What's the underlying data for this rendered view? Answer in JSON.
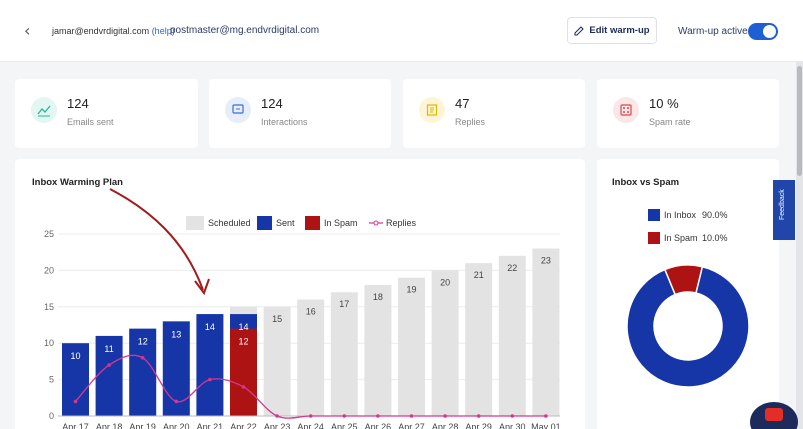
{
  "header": {
    "user_email": "jamar@endvrdigital.com",
    "help_label": "(help)",
    "mailbox": "postmaster@mg.endvrdigital.com",
    "edit_button": "Edit warm-up",
    "warmup_status": "Warm-up active",
    "warmup_on": true
  },
  "stats": [
    {
      "value": "124",
      "label": "Emails sent",
      "icon": "chart-line-icon",
      "color": "#26b89a",
      "bg": "#e3f6f1"
    },
    {
      "value": "124",
      "label": "Interactions",
      "icon": "chat-icon",
      "color": "#3c6ed8",
      "bg": "#e6edfb"
    },
    {
      "value": "47",
      "label": "Replies",
      "icon": "document-icon",
      "color": "#e6b400",
      "bg": "#fdf5d8"
    },
    {
      "value": "10 %",
      "label": "Spam rate",
      "icon": "dice-icon",
      "color": "#d64a4a",
      "bg": "#fbe7e7"
    }
  ],
  "plan_panel": {
    "title": "Inbox Warming Plan"
  },
  "spam_panel": {
    "title": "Inbox vs Spam"
  },
  "feedback_tab": "Feedback",
  "chart_data": [
    {
      "type": "bar",
      "title": "Inbox Warming Plan",
      "categories": [
        "Apr 17",
        "Apr 18",
        "Apr 19",
        "Apr 20",
        "Apr 21",
        "Apr 22",
        "Apr 23",
        "Apr 24",
        "Apr 25",
        "Apr 26",
        "Apr 27",
        "Apr 28",
        "Apr 29",
        "Apr 30",
        "May 01"
      ],
      "ylim": [
        0,
        25
      ],
      "yticks": [
        0,
        5,
        10,
        15,
        20,
        25
      ],
      "legend": [
        "Scheduled",
        "Sent",
        "In Spam",
        "Replies"
      ],
      "series": [
        {
          "name": "Scheduled",
          "color": "#e3e3e3",
          "values": [
            10,
            11,
            12,
            13,
            14,
            15,
            15,
            16,
            17,
            18,
            19,
            20,
            21,
            22,
            23
          ]
        },
        {
          "name": "Sent",
          "color": "#1636a8",
          "values": [
            10,
            11,
            12,
            13,
            14,
            14,
            null,
            null,
            null,
            null,
            null,
            null,
            null,
            null,
            null
          ]
        },
        {
          "name": "In Spam",
          "color": "#ad1313",
          "values": [
            null,
            null,
            null,
            null,
            null,
            12,
            null,
            null,
            null,
            null,
            null,
            null,
            null,
            null,
            null
          ]
        },
        {
          "name": "Replies",
          "type": "line",
          "color": "#d6368f",
          "values": [
            2,
            7,
            8,
            2,
            5,
            4,
            0,
            0,
            0,
            0,
            0,
            0,
            0,
            0,
            0
          ]
        }
      ],
      "bar_labels": [
        "10",
        "11",
        "12",
        "13",
        "14",
        "14",
        "15",
        "16",
        "17",
        "18",
        "19",
        "20",
        "21",
        "22",
        "23"
      ],
      "spam_label": "12"
    },
    {
      "type": "pie",
      "title": "Inbox vs Spam",
      "labels": [
        "In Inbox",
        "In Spam"
      ],
      "values": [
        90.0,
        10.0
      ],
      "display": [
        "90.0%",
        "10.0%"
      ],
      "colors": [
        "#1636a8",
        "#ad1313"
      ]
    }
  ]
}
